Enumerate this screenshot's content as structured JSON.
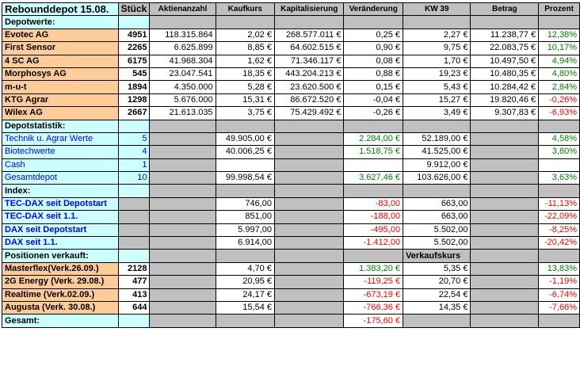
{
  "title": "Rebounddepot 15.08.",
  "headers": [
    "Stück",
    "Aktienanzahl",
    "Kaufkurs",
    "Kapitalisierung",
    "Veränderung",
    "KW 39",
    "Betrag",
    "Prozent"
  ],
  "sections": {
    "depotwerte": "Depotwerte:",
    "depotstatistik": "Depotstatistik:",
    "index": "Index:",
    "verkauft": "Positionen verkauft:",
    "gesamt": "Gesamt:"
  },
  "holdings": [
    {
      "name": "Evotec AG",
      "stueck": "4951",
      "anzahl": "118.315.864",
      "kaufkurs": "2,02 €",
      "kapital": "268.577.011 €",
      "veraenderung": "0,25 €",
      "kw39": "2,27 €",
      "betrag": "11.238,77 €",
      "prozent": "12,38%",
      "dir": "pos"
    },
    {
      "name": "First Sensor",
      "stueck": "2265",
      "anzahl": "6.625.899",
      "kaufkurs": "8,85 €",
      "kapital": "64.602.515 €",
      "veraenderung": "0,90 €",
      "kw39": "9,75 €",
      "betrag": "22.083,75 €",
      "prozent": "10,17%",
      "dir": "pos"
    },
    {
      "name": "4 SC AG",
      "stueck": "6175",
      "anzahl": "41.968.304",
      "kaufkurs": "1,62 €",
      "kapital": "71.346.117 €",
      "veraenderung": "0,08 €",
      "kw39": "1,70 €",
      "betrag": "10.497,50 €",
      "prozent": "4,94%",
      "dir": "pos"
    },
    {
      "name": "Morphosys AG",
      "stueck": "545",
      "anzahl": "23.047.541",
      "kaufkurs": "18,35 €",
      "kapital": "443.204.213 €",
      "veraenderung": "0,88 €",
      "kw39": "19,23 €",
      "betrag": "10.480,35 €",
      "prozent": "4,80%",
      "dir": "pos"
    },
    {
      "name": "m-u-t",
      "stueck": "1894",
      "anzahl": "4.350.000",
      "kaufkurs": "5,28 €",
      "kapital": "23.620.500 €",
      "veraenderung": "0,15 €",
      "kw39": "5,43 €",
      "betrag": "10.284,42 €",
      "prozent": "2,84%",
      "dir": "pos"
    },
    {
      "name": "KTG Agrar",
      "stueck": "1298",
      "anzahl": "5.676.000",
      "kaufkurs": "15,31 €",
      "kapital": "86.672.520 €",
      "veraenderung": "-0,04 €",
      "kw39": "15,27 €",
      "betrag": "19.820,46 €",
      "prozent": "-0,26%",
      "dir": "neg"
    },
    {
      "name": "Wilex AG",
      "stueck": "2667",
      "anzahl": "21.613.035",
      "kaufkurs": "3,75 €",
      "kapital": "75.429.492 €",
      "veraenderung": "-0,26 €",
      "kw39": "3,49 €",
      "betrag": "9.307,83 €",
      "prozent": "-6,93%",
      "dir": "neg"
    }
  ],
  "stats": [
    {
      "name": "Technik u. Agrar Werte",
      "stueck": "5",
      "kaufkurs": "49.905,00 €",
      "veraenderung": "2.284,00 €",
      "kw39": "52.189,00 €",
      "prozent": "4,58%"
    },
    {
      "name": "Biotechwerte",
      "stueck": "4",
      "kaufkurs": "40.006,25 €",
      "veraenderung": "1.518,75 €",
      "kw39": "41.525,00 €",
      "prozent": "3,80%"
    },
    {
      "name": "Cash",
      "stueck": "1",
      "kaufkurs": "",
      "veraenderung": "",
      "kw39": "9.912,00 €",
      "prozent": ""
    },
    {
      "name": "Gesamtdepot",
      "stueck": "10",
      "kaufkurs": "99.998,54 €",
      "veraenderung": "3.627,46 €",
      "kw39": "103.626,00 €",
      "prozent": "3,63%"
    }
  ],
  "indices": [
    {
      "name": "TEC-DAX seit Depotstart",
      "kaufkurs": "746,00",
      "veraenderung": "-83,00",
      "kw39": "663,00",
      "prozent": "-11,13%"
    },
    {
      "name": "TEC-DAX seit 1.1.",
      "kaufkurs": "851,00",
      "veraenderung": "-188,00",
      "kw39": "663,00",
      "prozent": "-22,09%"
    },
    {
      "name": "DAX seit Depotstart",
      "kaufkurs": "5.997,00",
      "veraenderung": "-495,00",
      "kw39": "5.502,00",
      "prozent": "-8,25%"
    },
    {
      "name": "DAX seit 1.1.",
      "kaufkurs": "6.914,00",
      "veraenderung": "-1.412,00",
      "kw39": "5.502,00",
      "prozent": "-20,42%"
    }
  ],
  "verkaufskurs_label": "Verkaufskurs",
  "sold": [
    {
      "name": "Masterflex(Verk.26.09.)",
      "stueck": "2128",
      "kaufkurs": "4,70 €",
      "veraenderung": "1.383,20 €",
      "kw39": "5,35 €",
      "prozent": "13,83%",
      "dir": "pos"
    },
    {
      "name": "2G Energy (Verk. 29.08.)",
      "stueck": "477",
      "kaufkurs": "20,95 €",
      "veraenderung": "-119,25 €",
      "kw39": "20,70 €",
      "prozent": "-1,19%",
      "dir": "neg"
    },
    {
      "name": "Realtime (Verk.02.09.)",
      "stueck": "413",
      "kaufkurs": "24,17 €",
      "veraenderung": "-673,19 €",
      "kw39": "22,54 €",
      "prozent": "-6,74%",
      "dir": "neg"
    },
    {
      "name": "Augusta (Verk. 30.08.)",
      "stueck": "644",
      "kaufkurs": "15,54 €",
      "veraenderung": "-766,36 €",
      "kw39": "14,35 €",
      "prozent": "-7,66%",
      "dir": "neg"
    }
  ],
  "gesamt_veraenderung": "-175,60 €",
  "colors": {
    "header_bg": "#c0c0c0",
    "cyan": "#ccffff",
    "peach": "#ffcc99",
    "positive": "#008000",
    "negative": "#ff0000",
    "link_blue": "#0000ff"
  }
}
